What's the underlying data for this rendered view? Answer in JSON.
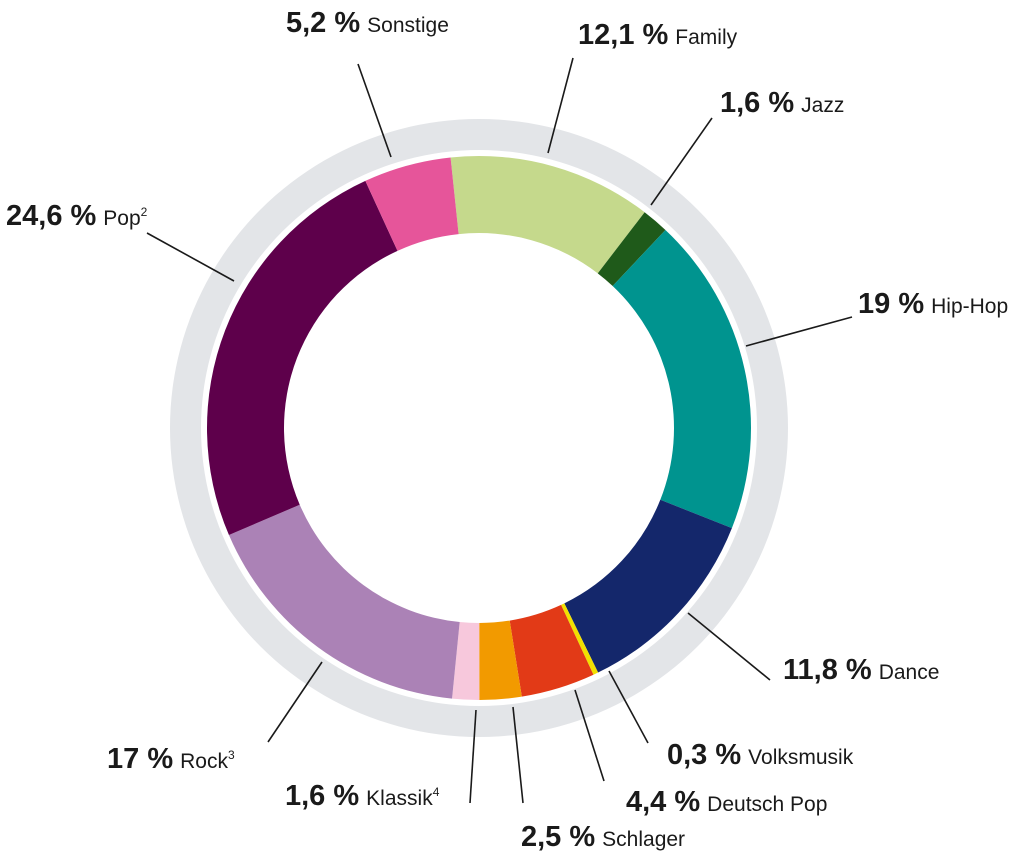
{
  "chart_data": {
    "type": "pie",
    "donut": true,
    "slices": [
      {
        "label": "Family",
        "sup": "",
        "value": 12.1,
        "display": "12,1 %",
        "color": "#c5d98c"
      },
      {
        "label": "Jazz",
        "sup": "",
        "value": 1.6,
        "display": "1,6 %",
        "color": "#1f5a1a"
      },
      {
        "label": "Hip-Hop",
        "sup": "",
        "value": 19,
        "display": "19 %",
        "color": "#00948f"
      },
      {
        "label": "Dance",
        "sup": "",
        "value": 11.8,
        "display": "11,8 %",
        "color": "#14276b"
      },
      {
        "label": "Volksmusik",
        "sup": "",
        "value": 0.3,
        "display": "0,3 %",
        "color": "#f2e000"
      },
      {
        "label": "Deutsch Pop",
        "sup": "",
        "value": 4.4,
        "display": "4,4 %",
        "color": "#e23a17"
      },
      {
        "label": "Schlager",
        "sup": "",
        "value": 2.5,
        "display": "2,5 %",
        "color": "#f29a00"
      },
      {
        "label": "Klassik",
        "sup": "4",
        "value": 1.6,
        "display": "1,6 %",
        "color": "#f7c8dc"
      },
      {
        "label": "Rock",
        "sup": "3",
        "value": 17,
        "display": "17 %",
        "color": "#ab82b6"
      },
      {
        "label": "Pop",
        "sup": "2",
        "value": 24.6,
        "display": "24,6 %",
        "color": "#5e004b"
      },
      {
        "label": "Sonstige",
        "sup": "",
        "value": 5.2,
        "display": "5,2 %",
        "color": "#e6559a"
      }
    ],
    "outer_ring_color": "#e3e5e8",
    "legend": "none"
  }
}
